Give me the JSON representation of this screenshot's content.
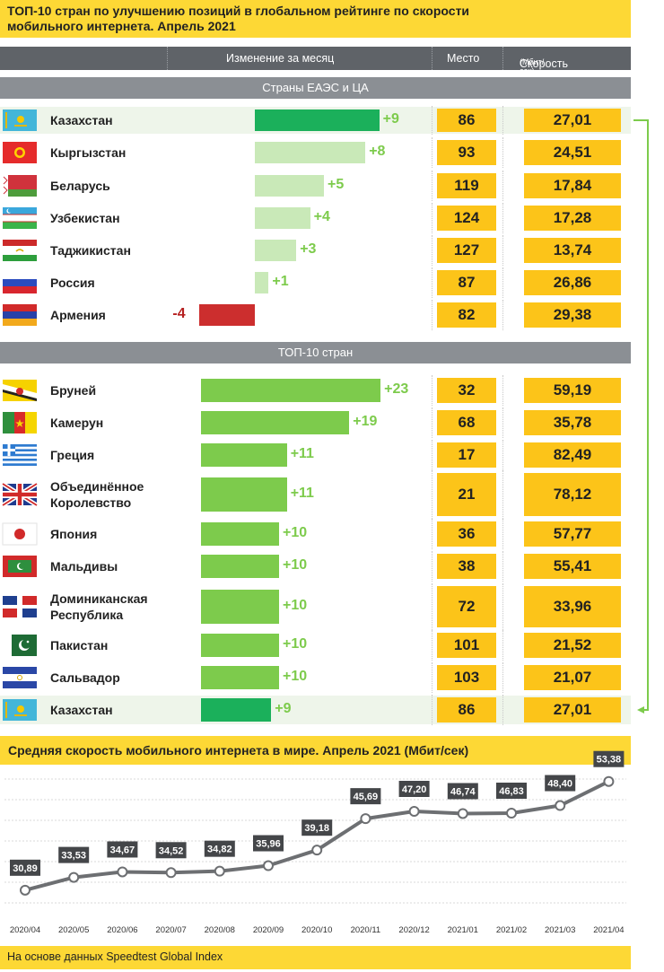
{
  "title_line1": "ТОП-10 стран по улучшению позиций в глобальном рейтинге по скорости",
  "title_line2": "мобильного интернета. Апрель 2021",
  "columns": {
    "change": "Изменение  за месяц",
    "rank": "Место",
    "speed": "Скорость",
    "speed_unit": "(Мбит/сек)"
  },
  "groups": {
    "eaeu": "Страны ЕАЭС и ЦА",
    "top10": "ТОП-10 стран"
  },
  "colors": {
    "accent_yellow": "#fcc419",
    "highlight_green": "#1bb05b",
    "light_green": "#c9e9b8",
    "bright_green": "#7dcb4c",
    "negative_red": "#cc2e2e",
    "delta_green": "#7dcb4c",
    "delta_red": "#b51f1f"
  },
  "eaeu_rows": [
    {
      "country": "Казахстан",
      "flag": "kz",
      "change": 9,
      "change_label": "+9",
      "rank": "86",
      "speed": "27,01",
      "highlight": true
    },
    {
      "country": "Кыргызстан",
      "flag": "kg",
      "change": 8,
      "change_label": "+8",
      "rank": "93",
      "speed": "24,51"
    },
    {
      "country": "Беларусь",
      "flag": "by",
      "change": 5,
      "change_label": "+5",
      "rank": "119",
      "speed": "17,84"
    },
    {
      "country": "Узбекистан",
      "flag": "uz",
      "change": 4,
      "change_label": "+4",
      "rank": "124",
      "speed": "17,28"
    },
    {
      "country": "Таджикистан",
      "flag": "tj",
      "change": 3,
      "change_label": "+3",
      "rank": "127",
      "speed": "13,74"
    },
    {
      "country": "Россия",
      "flag": "ru",
      "change": 1,
      "change_label": "+1",
      "rank": "87",
      "speed": "26,86"
    },
    {
      "country": "Армения",
      "flag": "am",
      "change": -4,
      "change_label": "-4",
      "rank": "82",
      "speed": "29,38"
    }
  ],
  "top10_rows": [
    {
      "country": "Бруней",
      "flag": "bn",
      "change": 23,
      "change_label": "+23",
      "rank": "32",
      "speed": "59,19"
    },
    {
      "country": "Камерун",
      "flag": "cm",
      "change": 19,
      "change_label": "+19",
      "rank": "68",
      "speed": "35,78"
    },
    {
      "country": "Греция",
      "flag": "gr",
      "change": 11,
      "change_label": "+11",
      "rank": "17",
      "speed": "82,49"
    },
    {
      "country": "Объединённое Королевство",
      "country_lines": [
        "Объединённое",
        "Королевство"
      ],
      "flag": "gb",
      "change": 11,
      "change_label": "+11",
      "rank": "21",
      "speed": "78,12"
    },
    {
      "country": "Япония",
      "flag": "jp",
      "change": 10,
      "change_label": "+10",
      "rank": "36",
      "speed": "57,77"
    },
    {
      "country": "Мальдивы",
      "flag": "mv",
      "change": 10,
      "change_label": "+10",
      "rank": "38",
      "speed": "55,41"
    },
    {
      "country": "Доминиканская Республика",
      "country_lines": [
        "Доминиканская",
        "Республика"
      ],
      "flag": "do",
      "change": 10,
      "change_label": "+10",
      "rank": "72",
      "speed": "33,96"
    },
    {
      "country": "Пакистан",
      "flag": "pk",
      "change": 10,
      "change_label": "+10",
      "rank": "101",
      "speed": "21,52"
    },
    {
      "country": "Сальвадор",
      "flag": "sv",
      "change": 10,
      "change_label": "+10",
      "rank": "103",
      "speed": "21,07"
    },
    {
      "country": "Казахстан",
      "flag": "kz",
      "change": 9,
      "change_label": "+9",
      "rank": "86",
      "speed": "27,01",
      "highlight": true
    }
  ],
  "chart_title": "Средняя скорость мобильного интернета в мире. Апрель 2021 (Мбит/сек)",
  "chart_data": {
    "type": "line",
    "title": "Средняя скорость мобильного интернета в мире. Апрель 2021 (Мбит/сек)",
    "categories": [
      "2020/04",
      "2020/05",
      "2020/06",
      "2020/07",
      "2020/08",
      "2020/09",
      "2020/10",
      "2020/11",
      "2020/12",
      "2021/01",
      "2021/02",
      "2021/03",
      "2021/04"
    ],
    "values": [
      30.89,
      33.53,
      34.67,
      34.52,
      34.82,
      35.96,
      39.18,
      45.69,
      47.2,
      46.74,
      46.83,
      48.4,
      53.38
    ],
    "value_labels": [
      "30,89",
      "33,53",
      "34,67",
      "34,52",
      "34,82",
      "35,96",
      "39,18",
      "45,69",
      "47,20",
      "46,74",
      "46,83",
      "48,40",
      "53,38"
    ],
    "ylim": [
      29,
      55
    ],
    "grid": true,
    "xlabel": "",
    "ylabel": ""
  },
  "source": "На основе данных Speedtest Global Index"
}
